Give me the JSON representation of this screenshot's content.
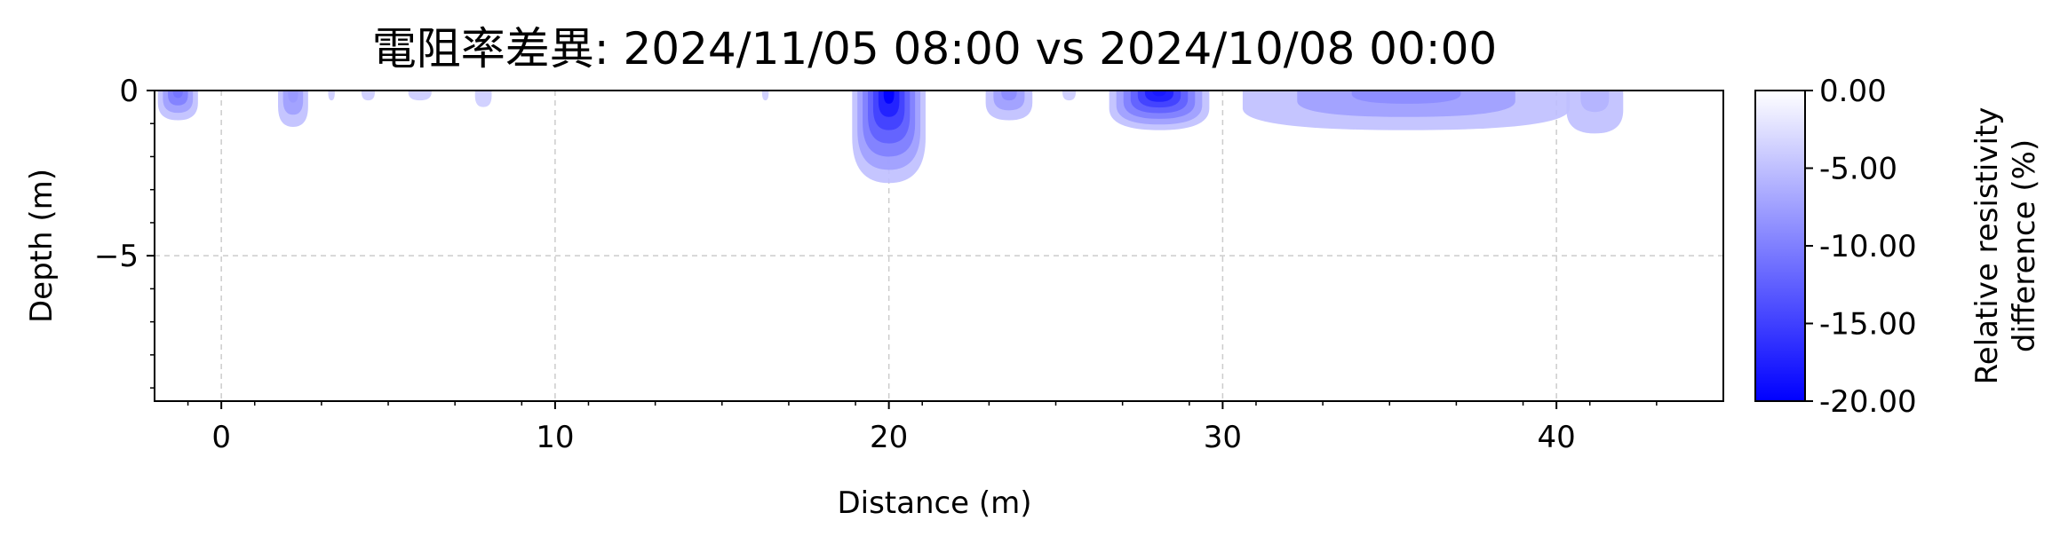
{
  "chart_data": {
    "type": "heatmap",
    "title": "電阻率差異: 2024/11/05 08:00 vs 2024/10/08 00:00",
    "xlabel": "Distance (m)",
    "ylabel": "Depth (m)",
    "xlim": [
      -2,
      45
    ],
    "ylim": [
      -9.4,
      0
    ],
    "x_ticks": [
      0,
      10,
      20,
      30,
      40
    ],
    "x_tick_labels": [
      "0",
      "10",
      "20",
      "30",
      "40"
    ],
    "y_ticks": [
      0,
      -5
    ],
    "y_tick_labels": [
      "0",
      "−5"
    ],
    "grid": true,
    "colorbar": {
      "label_line1": "Relative resistivity",
      "label_line2": "difference (%)",
      "range": [
        -20,
        0
      ],
      "ticks": [
        0,
        -5,
        -10,
        -15,
        -20
      ],
      "tick_labels": [
        "0.00",
        "-5.00",
        "-10.00",
        "-15.00",
        "-20.00"
      ],
      "color_min": "#0000ff",
      "color_max": "#ffffff"
    },
    "anomalies": [
      {
        "x": [
          -1.9,
          -0.7
        ],
        "depth": [
          0,
          0.9
        ],
        "min_value": -11
      },
      {
        "x": [
          1.7,
          2.6
        ],
        "depth": [
          0,
          1.1
        ],
        "min_value": -8
      },
      {
        "x": [
          3.2,
          3.4
        ],
        "depth": [
          0,
          0.3
        ],
        "min_value": -4
      },
      {
        "x": [
          4.2,
          4.6
        ],
        "depth": [
          0,
          0.3
        ],
        "min_value": -4
      },
      {
        "x": [
          5.6,
          6.3
        ],
        "depth": [
          0,
          0.3
        ],
        "min_value": -4
      },
      {
        "x": [
          7.6,
          8.1
        ],
        "depth": [
          0,
          0.5
        ],
        "min_value": -4
      },
      {
        "x": [
          16.2,
          16.4
        ],
        "depth": [
          0,
          0.3
        ],
        "min_value": -4
      },
      {
        "x": [
          18.9,
          21.1
        ],
        "depth": [
          0,
          2.8
        ],
        "min_value": -20
      },
      {
        "x": [
          22.9,
          24.3
        ],
        "depth": [
          0,
          0.9
        ],
        "min_value": -9
      },
      {
        "x": [
          25.2,
          25.6
        ],
        "depth": [
          0,
          0.3
        ],
        "min_value": -4
      },
      {
        "x": [
          26.6,
          29.6
        ],
        "depth": [
          0,
          1.2
        ],
        "min_value": -18
      },
      {
        "x": [
          30.6,
          40.4
        ],
        "depth": [
          0,
          1.2
        ],
        "min_value": -9
      },
      {
        "x": [
          40.3,
          42.0
        ],
        "depth": [
          0,
          1.3
        ],
        "min_value": -6
      }
    ]
  }
}
